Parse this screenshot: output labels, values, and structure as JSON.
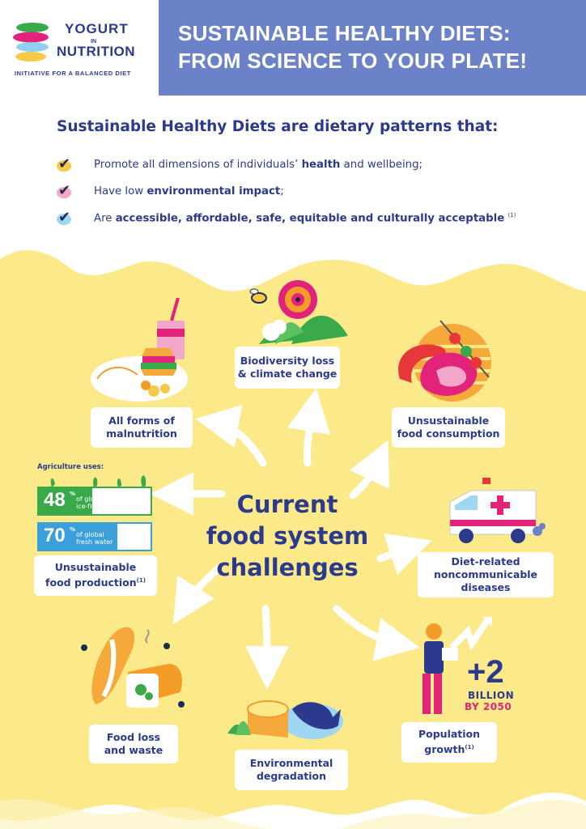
{
  "logo": {
    "word1": "YOGURT",
    "word2": "IN",
    "word3": "NUTRITION",
    "tagline": "INITIATIVE FOR A BALANCED DIET"
  },
  "header": {
    "title_line1": "SUSTAINABLE HEALTHY DIETS:",
    "title_line2": "FROM SCIENCE TO YOUR PLATE!"
  },
  "intro": "Sustainable Healthy Diets are dietary patterns that:",
  "bullets": [
    {
      "pre": "Promote all dimensions of individuals’ ",
      "bold": "health",
      "post": " and wellbeing;",
      "note": ""
    },
    {
      "pre": "Have low ",
      "bold": "environmental impact",
      "post": ";",
      "note": ""
    },
    {
      "pre": "Are ",
      "bold": "accessible, affordable, safe, equitable and culturally acceptable",
      "post": " ",
      "note": "(1)"
    }
  ],
  "colors": {
    "navy": "#2b3a8c",
    "header_band": "#6b82c8",
    "yellow": "#fbe98a",
    "pink": "#e2237c",
    "green": "#3aa94a",
    "blue": "#3b9fd9"
  },
  "center": {
    "line1": "Current",
    "line2": "food system",
    "line3": "challenges"
  },
  "challenges": {
    "biodiversity": {
      "line1": "Biodiversity loss",
      "line2": "& climate change"
    },
    "malnutrition": {
      "line1": "All forms of",
      "line2": "malnutrition"
    },
    "consumption": {
      "line1": "Unsustainable",
      "line2": "food consumption"
    },
    "production": {
      "line1": "Unsustainable",
      "line2": "food production",
      "note": "(1)"
    },
    "ncd": {
      "line1": "Diet-related",
      "line2": "noncommunicable",
      "line3": "diseases"
    },
    "waste": {
      "line1": "Food loss",
      "line2": "and waste"
    },
    "environment": {
      "line1": "Environmental",
      "line2": "degradation"
    },
    "population": {
      "line1": "Population",
      "line2": "growth",
      "note": "(1)"
    }
  },
  "agriculture": {
    "label": "Agriculture uses:",
    "land": {
      "value": "48",
      "pct": "%",
      "desc1": "of global",
      "desc2": "ice-free land",
      "fill": 0.48
    },
    "water": {
      "value": "70",
      "pct": "%",
      "desc1": "of global",
      "desc2": "fresh water",
      "fill": 0.7
    }
  },
  "population_stat": {
    "big": "+2",
    "unit": "BILLION",
    "year": "BY 2050"
  }
}
